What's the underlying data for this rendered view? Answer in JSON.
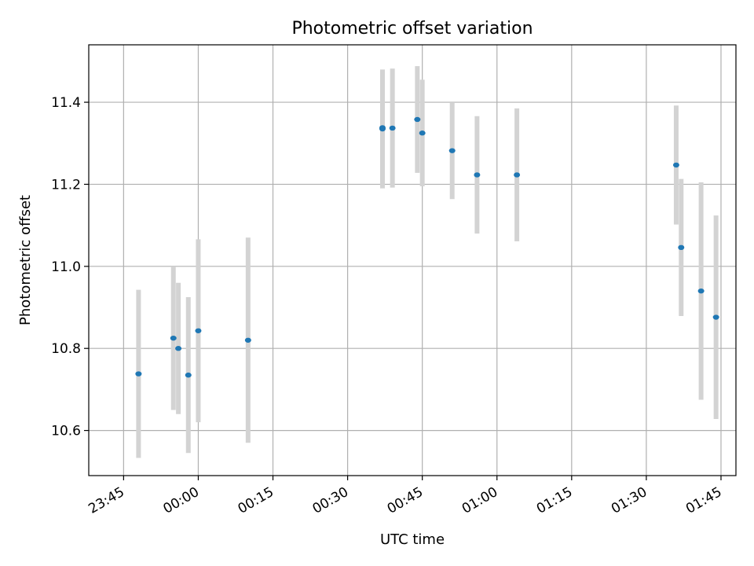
{
  "chart_data": {
    "type": "scatter",
    "title": "Photometric offset variation",
    "xlabel": "UTC time",
    "ylabel": "Photometric offset",
    "x_axis": {
      "kind": "time",
      "start": "23:38",
      "end": "01:48",
      "ticks": [
        "23:45",
        "00:00",
        "00:15",
        "00:30",
        "00:45",
        "01:00",
        "01:15",
        "01:30",
        "01:45"
      ]
    },
    "y_axis": {
      "ylim": [
        10.49,
        11.54
      ],
      "ticks": [
        "10.6",
        "10.8",
        "11.0",
        "11.2",
        "11.4"
      ]
    },
    "grid": true,
    "colors": {
      "points": "#1f77b4",
      "errorbars": "#d3d3d3",
      "grid": "#b0b0b0"
    },
    "points": [
      {
        "x": "23:48",
        "y": 10.738,
        "yerr": 0.205
      },
      {
        "x": "23:55",
        "y": 10.825,
        "yerr": 0.175
      },
      {
        "x": "23:56",
        "y": 10.8,
        "yerr": 0.16
      },
      {
        "x": "23:58",
        "y": 10.735,
        "yerr": 0.19
      },
      {
        "x": "00:00",
        "y": 10.843,
        "yerr": 0.223
      },
      {
        "x": "00:10",
        "y": 10.82,
        "yerr": 0.25
      },
      {
        "x": "00:37",
        "y": 11.335,
        "yerr": 0.145
      },
      {
        "x": "00:37",
        "y": 11.338,
        "yerr": 0.14
      },
      {
        "x": "00:39",
        "y": 11.337,
        "yerr": 0.145
      },
      {
        "x": "00:44",
        "y": 11.358,
        "yerr": 0.13
      },
      {
        "x": "00:45",
        "y": 11.325,
        "yerr": 0.13
      },
      {
        "x": "00:51",
        "y": 11.282,
        "yerr": 0.118
      },
      {
        "x": "00:56",
        "y": 11.223,
        "yerr": 0.143
      },
      {
        "x": "01:04",
        "y": 11.223,
        "yerr": 0.162
      },
      {
        "x": "01:36",
        "y": 11.247,
        "yerr": 0.145
      },
      {
        "x": "01:37",
        "y": 11.046,
        "yerr": 0.167
      },
      {
        "x": "01:41",
        "y": 10.94,
        "yerr": 0.265
      },
      {
        "x": "01:44",
        "y": 10.876,
        "yerr": 0.248
      }
    ]
  }
}
